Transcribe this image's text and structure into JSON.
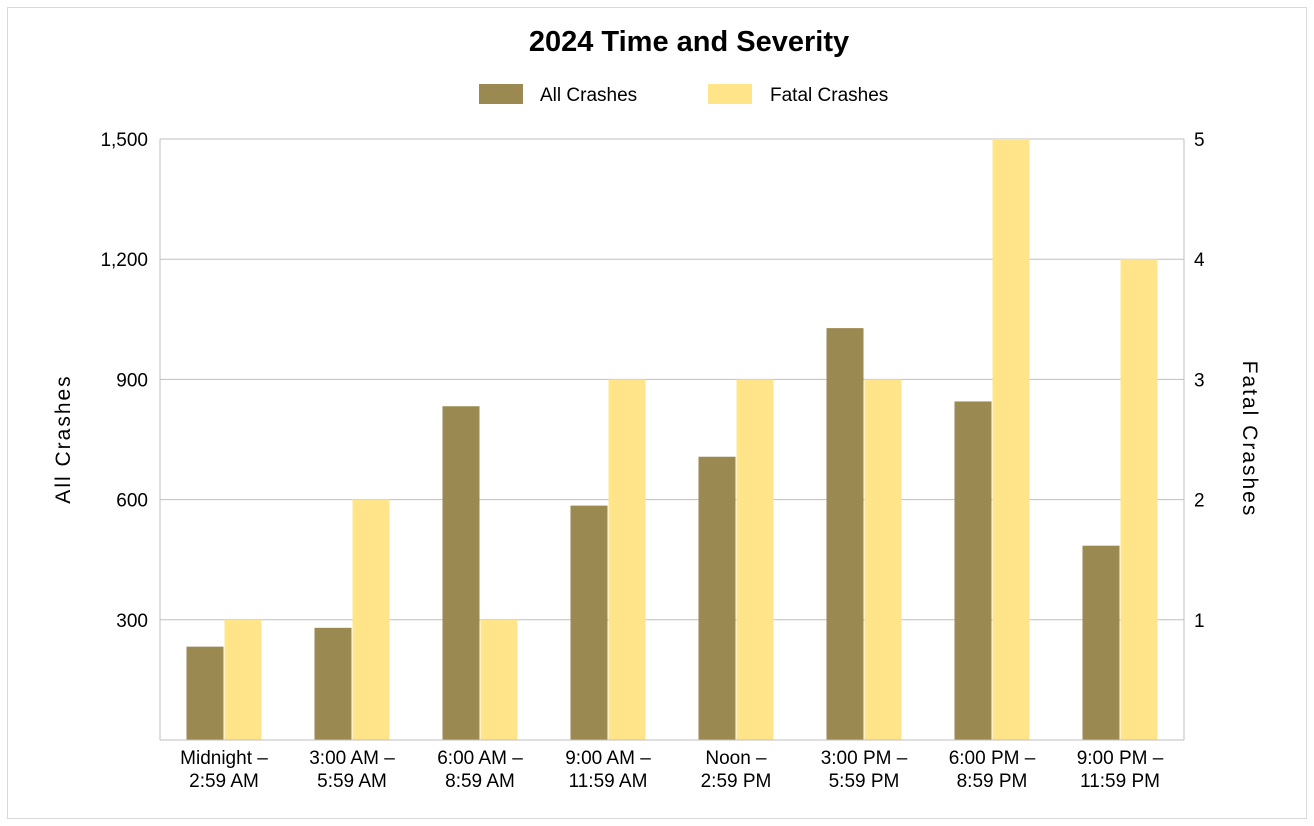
{
  "chart_data": {
    "type": "bar",
    "title": "2024 Time and Severity",
    "categories": [
      [
        "Midnight –",
        "2:59 AM"
      ],
      [
        "3:00 AM –",
        "5:59 AM"
      ],
      [
        "6:00 AM –",
        "8:59 AM"
      ],
      [
        "9:00 AM –",
        "11:59 AM"
      ],
      [
        "Noon –",
        "2:59 PM"
      ],
      [
        "3:00 PM –",
        "5:59 PM"
      ],
      [
        "6:00 PM –",
        "8:59 PM"
      ],
      [
        "9:00 PM –",
        "11:59 PM"
      ]
    ],
    "series": [
      {
        "name": "All Crashes",
        "axis": "left",
        "color": "#9a8a51",
        "values": [
          233,
          280,
          833,
          585,
          707,
          1028,
          845,
          485
        ]
      },
      {
        "name": "Fatal Crashes",
        "axis": "right",
        "color": "#ffe48a",
        "values": [
          1,
          2,
          1,
          3,
          3,
          3,
          5,
          4
        ]
      }
    ],
    "ylabel": "All Crashes",
    "y2label": "Fatal Crashes",
    "ylim": [
      0,
      1500
    ],
    "y2lim": [
      0,
      5
    ],
    "yticks": [
      "300",
      "600",
      "900",
      "1,200",
      "1,500"
    ],
    "y2ticks": [
      "1",
      "2",
      "3",
      "4",
      "5"
    ],
    "grid": true,
    "legend_position": "top"
  }
}
